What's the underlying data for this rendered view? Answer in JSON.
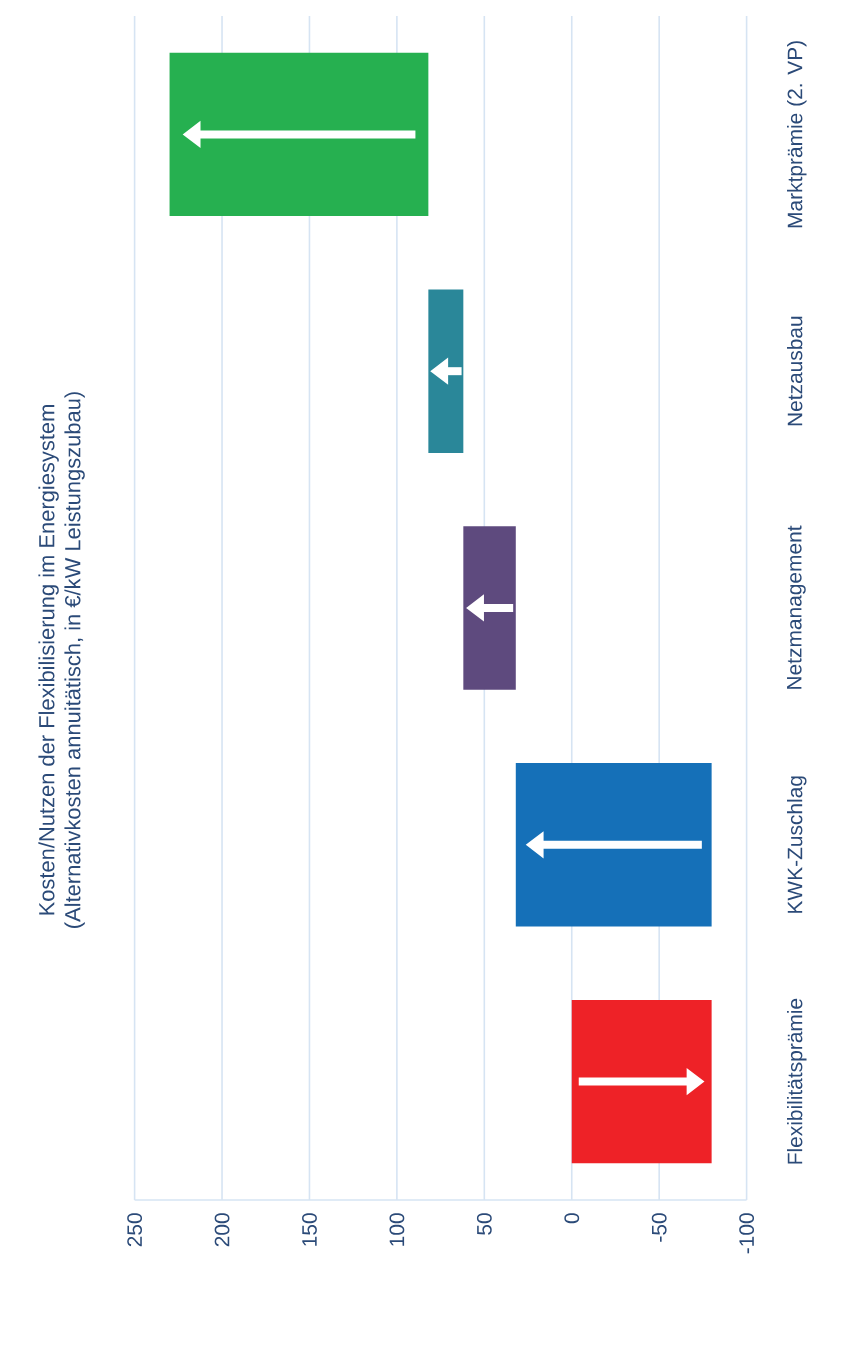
{
  "chart_data": {
    "type": "bar",
    "orientation": "horizontal",
    "title": "Kosten/Nutzen der Flexibilisierung im Energiesystem",
    "subtitle": "(Alternativkosten annuitätisch, in €/kW Leistungszubau)",
    "categories": [
      "Marktprämie (2. VP)",
      "Netzausbau",
      "Netzmanagement",
      "KWK-Zuschlag",
      "Flexibilitätsprämie"
    ],
    "values": [
      148,
      20,
      30,
      112,
      -80
    ],
    "base": [
      82,
      62,
      32,
      -80,
      0
    ],
    "colors": [
      "#26b050",
      "#2a8799",
      "#5e4a7e",
      "#1570b8",
      "#ee2227"
    ],
    "xlim": [
      250,
      -100
    ],
    "xticks": [
      250,
      200,
      150,
      100,
      50,
      0,
      -50,
      -100
    ],
    "grid": "x"
  }
}
